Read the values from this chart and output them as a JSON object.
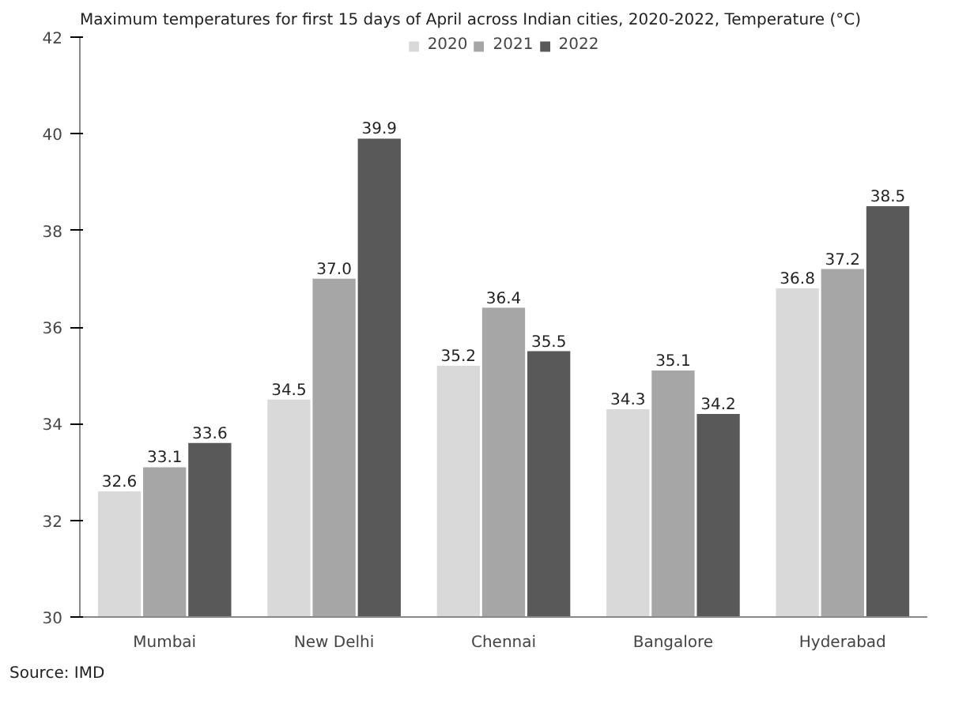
{
  "chart_data": {
    "type": "bar",
    "title": "Maximum temperatures for first 15 days of April across Indian cities, 2020-2022, Temperature (°C)",
    "categories": [
      "Mumbai",
      "New Delhi",
      "Chennai",
      "Bangalore",
      "Hyderabad"
    ],
    "series": [
      {
        "name": "2020",
        "color": "#d9d9d9",
        "values": [
          32.6,
          34.5,
          35.2,
          34.3,
          36.8
        ]
      },
      {
        "name": "2021",
        "color": "#a6a6a6",
        "values": [
          33.1,
          37.0,
          36.4,
          35.1,
          37.2
        ]
      },
      {
        "name": "2022",
        "color": "#595959",
        "values": [
          33.6,
          39.9,
          35.5,
          34.2,
          38.5
        ]
      }
    ],
    "value_labels": [
      [
        "32.6",
        "34.5",
        "35.2",
        "34.3",
        "36.8"
      ],
      [
        "33.1",
        "37.0",
        "36.4",
        "35.1",
        "37.2"
      ],
      [
        "33.6",
        "39.9",
        "35.5",
        "34.2",
        "38.5"
      ]
    ],
    "ylim": [
      30,
      42
    ],
    "yticks": [
      30,
      32,
      34,
      36,
      38,
      40,
      42
    ],
    "grid": false,
    "legend": "top",
    "annotations": [
      "Source: IMD"
    ]
  }
}
